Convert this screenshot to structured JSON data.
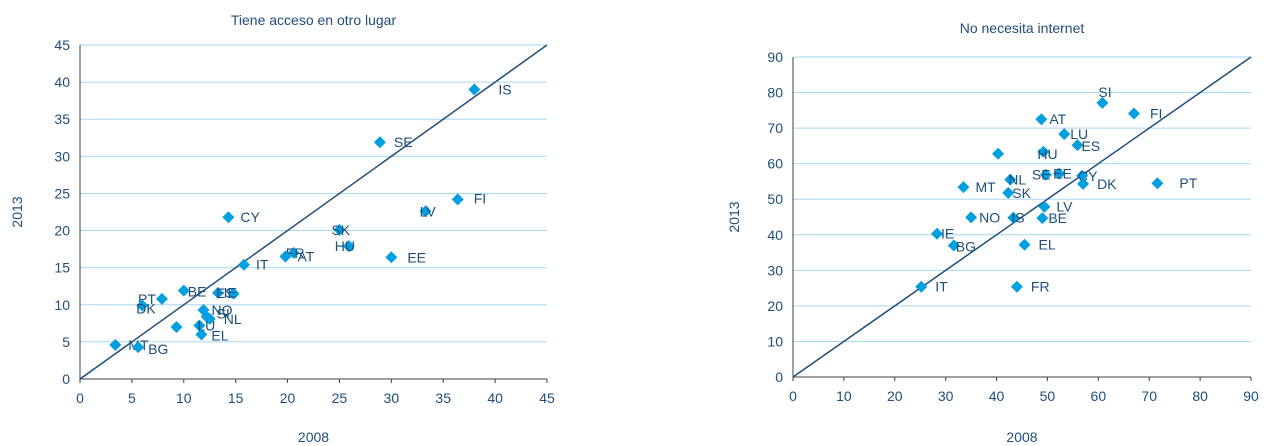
{
  "colors": {
    "marker": "#00a0e0",
    "line": "#1f4e79",
    "grid": "#a6d8ef",
    "text": "#1f4e79",
    "axis": "#404040"
  },
  "chart_data": [
    {
      "type": "scatter",
      "title": "Tiene acceso en otro lugar",
      "xlabel": "2008",
      "ylabel": "2013",
      "xlim": [
        0,
        45
      ],
      "ylim": [
        0,
        45
      ],
      "xticks": [
        "0",
        "5",
        "10",
        "15",
        "20",
        "25",
        "30",
        "35",
        "40",
        "45"
      ],
      "yticks": [
        "0",
        "5",
        "10",
        "15",
        "20",
        "25",
        "30",
        "35",
        "40",
        "45"
      ],
      "reference_line": "y = x",
      "grid": "horizontal",
      "points": [
        {
          "label": "IS",
          "x": 38.0,
          "y": 39.0
        },
        {
          "label": "SE",
          "x": 28.9,
          "y": 31.9
        },
        {
          "label": "FI",
          "x": 36.4,
          "y": 24.2
        },
        {
          "label": "LV",
          "x": 33.3,
          "y": 22.6
        },
        {
          "label": "CY",
          "x": 14.3,
          "y": 21.8
        },
        {
          "label": "SK",
          "x": 25.0,
          "y": 20.1
        },
        {
          "label": "HU",
          "x": 25.9,
          "y": 17.9
        },
        {
          "label": "FR",
          "x": 20.6,
          "y": 17.0
        },
        {
          "label": "AT",
          "x": 19.8,
          "y": 16.5
        },
        {
          "label": "EE",
          "x": 30.0,
          "y": 16.4
        },
        {
          "label": "IT",
          "x": 15.8,
          "y": 15.4
        },
        {
          "label": "PT",
          "x": 7.9,
          "y": 10.8
        },
        {
          "label": "DK",
          "x": 6.0,
          "y": 9.9
        },
        {
          "label": "BE",
          "x": 10.0,
          "y": 11.9
        },
        {
          "label": "ES",
          "x": 13.3,
          "y": 11.6
        },
        {
          "label": "IE",
          "x": 14.8,
          "y": 11.5
        },
        {
          "label": "NO",
          "x": 11.9,
          "y": 9.3
        },
        {
          "label": "NL",
          "x": 12.5,
          "y": 8.1
        },
        {
          "label": "SI",
          "x": 12.2,
          "y": 8.4
        },
        {
          "label": "LU",
          "x": 11.5,
          "y": 7.2
        },
        {
          "label": "",
          "x": 9.3,
          "y": 7.0
        },
        {
          "label": "EL",
          "x": 11.7,
          "y": 6.0
        },
        {
          "label": "MT",
          "x": 3.4,
          "y": 4.6
        },
        {
          "label": "BG",
          "x": 5.6,
          "y": 4.3
        }
      ]
    },
    {
      "type": "scatter",
      "title": "No necesita internet",
      "xlabel": "2008",
      "ylabel": "2013",
      "xlim": [
        0,
        90
      ],
      "ylim": [
        0,
        90
      ],
      "xticks": [
        "0",
        "10",
        "20",
        "30",
        "40",
        "50",
        "60",
        "70",
        "80",
        "90"
      ],
      "yticks": [
        "0",
        "10",
        "20",
        "30",
        "40",
        "50",
        "60",
        "70",
        "80",
        "90"
      ],
      "reference_line": "y = x",
      "grid": "horizontal",
      "points": [
        {
          "label": "SI",
          "x": 60.8,
          "y": 77.1
        },
        {
          "label": "FI",
          "x": 67.0,
          "y": 74.1
        },
        {
          "label": "AT",
          "x": 48.8,
          "y": 72.5
        },
        {
          "label": "LU",
          "x": 53.3,
          "y": 68.3
        },
        {
          "label": "ES",
          "x": 55.9,
          "y": 65.2
        },
        {
          "label": "HU",
          "x": 49.2,
          "y": 63.3
        },
        {
          "label": "",
          "x": 40.3,
          "y": 62.8
        },
        {
          "label": "NL",
          "x": 42.7,
          "y": 55.5
        },
        {
          "label": "SE",
          "x": 49.7,
          "y": 56.9
        },
        {
          "label": "EE",
          "x": 52.3,
          "y": 57.2
        },
        {
          "label": "CY",
          "x": 56.8,
          "y": 56.6
        },
        {
          "label": "DK",
          "x": 57.0,
          "y": 54.3
        },
        {
          "label": "PT",
          "x": 71.6,
          "y": 54.5
        },
        {
          "label": "MT",
          "x": 33.5,
          "y": 53.4
        },
        {
          "label": "SK",
          "x": 42.3,
          "y": 51.8
        },
        {
          "label": "LV",
          "x": 49.4,
          "y": 47.9
        },
        {
          "label": "NO",
          "x": 35.0,
          "y": 44.9
        },
        {
          "label": "IS",
          "x": 43.3,
          "y": 44.8
        },
        {
          "label": "BE",
          "x": 49.0,
          "y": 44.7
        },
        {
          "label": "IE",
          "x": 28.3,
          "y": 40.3
        },
        {
          "label": "BG",
          "x": 31.6,
          "y": 37.0
        },
        {
          "label": "EL",
          "x": 45.5,
          "y": 37.2
        },
        {
          "label": "IT",
          "x": 25.2,
          "y": 25.4
        },
        {
          "label": "FR",
          "x": 44.0,
          "y": 25.4
        }
      ]
    }
  ]
}
